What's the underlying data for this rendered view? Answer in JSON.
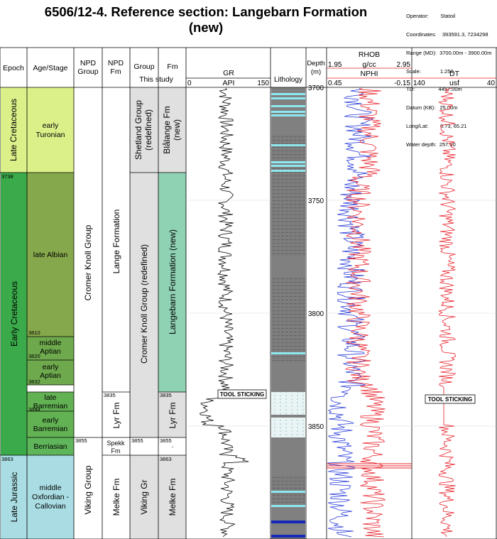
{
  "title_line1": "6506/12-4. Reference section: Langebarn Formation",
  "title_line2": "(new)",
  "meta": {
    "operator": "Operator:        Statoil",
    "coordinates": "Coordinates:    393591.3, 7234298",
    "range": "Range (MD):  3700.00m - 3900.00m",
    "scale": "Scale:             1:250",
    "td": "TD:                4457.00m",
    "datum": "Datum (KB):   25.00m",
    "longlat": "Long/Lat:        6.73, 65.21",
    "water": "Water depth:  257.00"
  },
  "headers": {
    "epoch": "Epoch",
    "age": "Age/Stage",
    "npd_group_1": "NPD",
    "npd_group_2": "Group",
    "npd_fm_1": "NPD",
    "npd_fm_2": "Fm",
    "group": "Group",
    "fm": "Fm",
    "this_study": "This study",
    "gr": "GR",
    "gr_unit": "API",
    "gr_min": "0",
    "gr_max": "150",
    "lithology": "Lithology",
    "depth_1": "Depth",
    "depth_2": "(m)",
    "rhob": "RHOB",
    "rhob_min": "1.95",
    "rhob_unit": "g/cc",
    "rhob_max": "2.95",
    "nphi": "NPHI",
    "nphi_min": "0.45",
    "nphi_max": "-0.15",
    "dt": "DT",
    "dt_min": "140",
    "dt_unit": "usf",
    "dt_max": "40"
  },
  "epochs": {
    "late_cret_1": "Late Cretaceous",
    "early_cret": "Early Cretaceous",
    "late_jur": "Late Jurassic"
  },
  "ages": {
    "early_turonian_1": "early",
    "early_turonian_2": "Turonian",
    "late_albian": "late Albian",
    "middle_aptian_1": "middle",
    "middle_aptian_2": "Aptian",
    "early_aptian_1": "early",
    "early_aptian_2": "Aptian",
    "late_barremian_1": "late",
    "late_barremian_2": "Barremian",
    "early_barremian_1": "early",
    "early_barremian_2": "Barremian",
    "berriasian": "Berriasian",
    "oxf_1": "middle",
    "oxf_2": "Oxfordian -",
    "oxf_3": "Callovian"
  },
  "depth_marks": {
    "d3738": "3738",
    "d3810": "3810",
    "d3820": "3820",
    "d3832": "3832",
    "d3835": "3835",
    "d3844": "3844",
    "d3855": "3855",
    "d3863": "3863"
  },
  "npd_groups": {
    "cromer": "Cromer Knoll Group",
    "viking": "Viking Group"
  },
  "npd_fms": {
    "lange": "Lange Formation",
    "lyr": "Lyr Fm",
    "spekk_1": "Spekk",
    "spekk_2": "Fm",
    "melke": "Melke Fm"
  },
  "groups": {
    "shetland_1": "Shetland Group",
    "shetland_2": "(redefined)",
    "cromer": "Cromer Knoll Group (redefined)",
    "viking": "Viking Gr"
  },
  "fms": {
    "blalange_1": "Blålange Fm",
    "blalange_2": "(new)",
    "langebarn": "Langebarn Formation (new)",
    "lyr": "Lyr Fm",
    "dot": ".",
    "melke": "Melke Fm"
  },
  "depth_ticks": [
    "3700",
    "3750",
    "3800",
    "3850"
  ],
  "tool_sticking": "TOOL STICKING",
  "colors": {
    "late_cretaceous": "#dcf08a",
    "early_cretaceous": "#3aaa4a",
    "late_jurassic": "#a9dde3",
    "albian": "#86a84c",
    "aptian": "#6ea94d",
    "barremian": "#62b153",
    "berriasian": "#5fb55a",
    "grey_unit": "#e0e0e0",
    "langebarn": "#8fd1b3",
    "shale": "#808080",
    "sand": "#8ee8f0",
    "limestone": "#1528b8",
    "rhob_curve": "#e8202a",
    "nphi_curve": "#2236d8",
    "dt_curve": "#e8202a"
  }
}
